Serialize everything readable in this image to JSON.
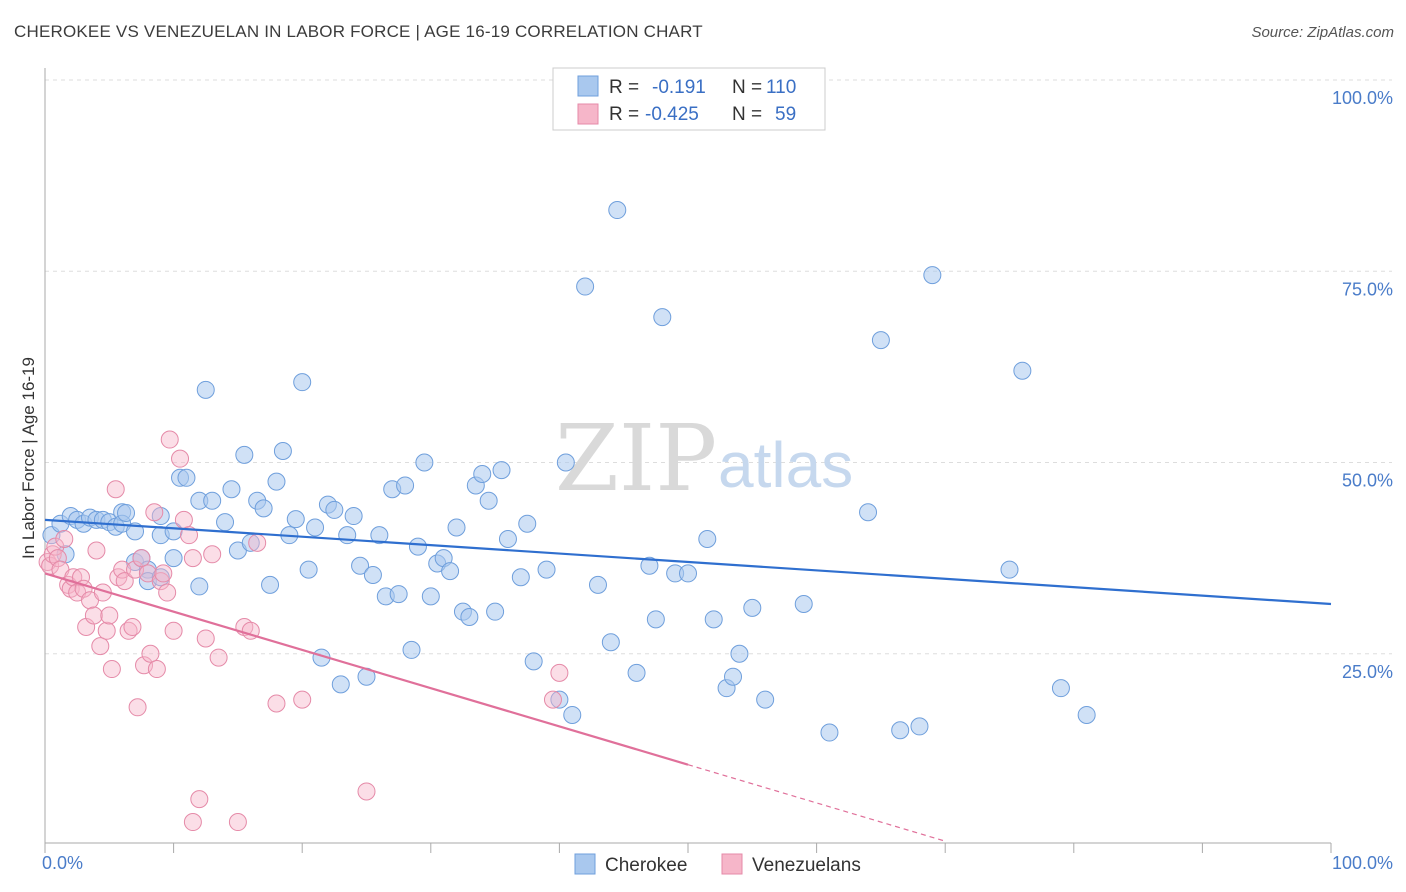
{
  "header": {
    "title": "CHEROKEE VS VENEZUELAN IN LABOR FORCE | AGE 16-19 CORRELATION CHART",
    "source": "Source: ZipAtlas.com"
  },
  "watermark": {
    "zip": "ZIP",
    "atlas": "atlas"
  },
  "legend": {
    "row1": {
      "r_label": "R =",
      "r_value": "-0.191",
      "n_label": "N =",
      "n_value": "110"
    },
    "row2": {
      "r_label": "R =",
      "r_value": "-0.425",
      "n_label": "N =",
      "n_value": "59"
    }
  },
  "bottom_legend": {
    "cherokee": "Cherokee",
    "venezuelans": "Venezuelans"
  },
  "chart_data": {
    "type": "scatter",
    "title": "CHEROKEE VS VENEZUELAN IN LABOR FORCE | AGE 16-19 CORRELATION CHART",
    "xlabel": "",
    "ylabel": "In Labor Force | Age 16-19",
    "xlim": [
      0,
      100
    ],
    "ylim": [
      0,
      100
    ],
    "x_tick_labels": [
      "0.0%",
      "100.0%"
    ],
    "y_ticks": [
      25,
      50,
      75,
      100
    ],
    "y_tick_labels": [
      "25.0%",
      "50.0%",
      "75.0%",
      "100.0%"
    ],
    "grid": true,
    "colors": {
      "cherokee": "#a9c8ee",
      "cherokee_line": "#2f6fcf",
      "venezuelans": "#f6b6c9",
      "venezuelans_line": "#e0709a"
    },
    "series": [
      {
        "name": "Cherokee",
        "r": -0.191,
        "n": 110,
        "trend": {
          "x0": 0,
          "y0": 42.5,
          "x1": 100,
          "y1": 31.5
        },
        "points": [
          [
            0.5,
            40.5
          ],
          [
            1.2,
            42
          ],
          [
            1.6,
            38
          ],
          [
            2,
            43
          ],
          [
            2.5,
            42.5
          ],
          [
            3,
            42
          ],
          [
            3.5,
            42.8
          ],
          [
            4,
            42.5
          ],
          [
            4.5,
            42.5
          ],
          [
            5,
            42.2
          ],
          [
            5.5,
            41.6
          ],
          [
            6,
            43.5
          ],
          [
            6,
            42
          ],
          [
            6.3,
            43.4
          ],
          [
            7,
            41
          ],
          [
            7,
            37
          ],
          [
            7.5,
            37.5
          ],
          [
            8,
            36
          ],
          [
            8,
            34.5
          ],
          [
            9,
            43
          ],
          [
            9,
            35
          ],
          [
            9,
            40.5
          ],
          [
            10,
            37.5
          ],
          [
            10,
            41
          ],
          [
            10.5,
            48
          ],
          [
            11,
            48
          ],
          [
            12,
            33.8
          ],
          [
            12,
            45
          ],
          [
            12.5,
            59.5
          ],
          [
            13,
            45
          ],
          [
            14,
            42.2
          ],
          [
            14.5,
            46.5
          ],
          [
            15,
            38.5
          ],
          [
            15.5,
            51
          ],
          [
            16,
            39.5
          ],
          [
            16.5,
            45
          ],
          [
            17,
            44
          ],
          [
            17.5,
            34
          ],
          [
            18,
            47.5
          ],
          [
            18.5,
            51.5
          ],
          [
            19,
            40.5
          ],
          [
            19.5,
            42.6
          ],
          [
            20,
            60.5
          ],
          [
            20.5,
            36
          ],
          [
            21,
            41.5
          ],
          [
            21.5,
            24.5
          ],
          [
            22,
            44.5
          ],
          [
            22.5,
            43.8
          ],
          [
            23,
            21
          ],
          [
            23.5,
            40.5
          ],
          [
            24,
            43
          ],
          [
            24.5,
            36.5
          ],
          [
            25,
            22
          ],
          [
            25.5,
            35.3
          ],
          [
            26,
            40.5
          ],
          [
            26.5,
            32.5
          ],
          [
            27,
            46.5
          ],
          [
            27.5,
            32.8
          ],
          [
            28,
            47
          ],
          [
            28.5,
            25.5
          ],
          [
            29,
            39
          ],
          [
            29.5,
            50
          ],
          [
            30,
            32.5
          ],
          [
            30.5,
            36.8
          ],
          [
            31,
            37.5
          ],
          [
            31.5,
            35.8
          ],
          [
            32,
            41.5
          ],
          [
            32.5,
            30.5
          ],
          [
            33,
            29.8
          ],
          [
            33.5,
            47
          ],
          [
            34,
            48.5
          ],
          [
            34.5,
            45
          ],
          [
            35,
            30.5
          ],
          [
            35.5,
            49
          ],
          [
            36,
            40
          ],
          [
            37,
            35
          ],
          [
            37.5,
            42
          ],
          [
            38,
            24
          ],
          [
            39,
            36
          ],
          [
            40,
            19
          ],
          [
            40.5,
            50
          ],
          [
            41,
            17
          ],
          [
            42,
            73
          ],
          [
            43,
            34
          ],
          [
            44,
            26.5
          ],
          [
            44.5,
            83
          ],
          [
            46,
            22.5
          ],
          [
            47,
            36.5
          ],
          [
            47.5,
            29.5
          ],
          [
            48,
            69
          ],
          [
            49,
            35.5
          ],
          [
            50,
            35.5
          ],
          [
            51.5,
            40
          ],
          [
            52,
            29.5
          ],
          [
            53,
            20.5
          ],
          [
            53.5,
            22
          ],
          [
            54,
            25
          ],
          [
            55,
            31
          ],
          [
            56,
            19
          ],
          [
            59,
            31.5
          ],
          [
            61,
            14.7
          ],
          [
            64,
            43.5
          ],
          [
            65,
            66
          ],
          [
            66.5,
            15
          ],
          [
            68,
            15.5
          ],
          [
            69,
            74.5
          ],
          [
            75,
            36
          ],
          [
            76,
            62
          ],
          [
            79,
            20.5
          ],
          [
            81,
            17
          ]
        ]
      },
      {
        "name": "Venezuelans",
        "r": -0.425,
        "n": 59,
        "trend": {
          "x0": 0,
          "y0": 35.5,
          "x1": 50,
          "y1": 10.5,
          "dash_to_x": 70,
          "dash_to_y": 0.5
        },
        "points": [
          [
            0.2,
            37
          ],
          [
            0.4,
            36.5
          ],
          [
            0.6,
            38
          ],
          [
            0.8,
            39
          ],
          [
            1,
            37.5
          ],
          [
            1.2,
            36
          ],
          [
            1.5,
            40
          ],
          [
            1.8,
            34
          ],
          [
            2,
            33.5
          ],
          [
            2.2,
            35
          ],
          [
            2.5,
            33
          ],
          [
            2.8,
            35
          ],
          [
            3,
            33.5
          ],
          [
            3.2,
            28.5
          ],
          [
            3.5,
            32
          ],
          [
            3.8,
            30
          ],
          [
            4,
            38.5
          ],
          [
            4.3,
            26
          ],
          [
            4.5,
            33
          ],
          [
            4.8,
            28
          ],
          [
            5,
            30
          ],
          [
            5.2,
            23
          ],
          [
            5.5,
            46.5
          ],
          [
            5.7,
            35
          ],
          [
            6,
            36
          ],
          [
            6.2,
            34.5
          ],
          [
            6.5,
            28
          ],
          [
            6.8,
            28.5
          ],
          [
            7,
            36
          ],
          [
            7.2,
            18
          ],
          [
            7.5,
            37.5
          ],
          [
            7.7,
            23.5
          ],
          [
            8,
            35.5
          ],
          [
            8.2,
            25
          ],
          [
            8.5,
            43.5
          ],
          [
            8.7,
            23
          ],
          [
            9,
            34.5
          ],
          [
            9.2,
            35.5
          ],
          [
            9.5,
            33
          ],
          [
            9.7,
            53
          ],
          [
            10,
            28
          ],
          [
            10.5,
            50.5
          ],
          [
            10.8,
            42.5
          ],
          [
            11.2,
            40.5
          ],
          [
            11.5,
            37.5
          ],
          [
            12,
            6
          ],
          [
            12.5,
            27
          ],
          [
            13,
            38
          ],
          [
            13.5,
            24.5
          ],
          [
            15,
            3
          ],
          [
            15.5,
            28.5
          ],
          [
            16,
            28
          ],
          [
            16.5,
            39.5
          ],
          [
            18,
            18.5
          ],
          [
            20,
            19
          ],
          [
            25,
            7
          ],
          [
            40,
            22.5
          ],
          [
            39.5,
            19
          ],
          [
            11.5,
            3
          ]
        ]
      }
    ]
  }
}
